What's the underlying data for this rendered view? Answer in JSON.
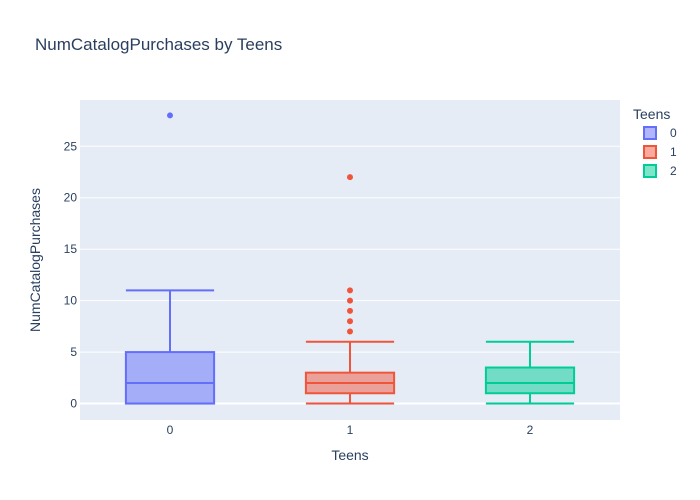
{
  "chart_data": {
    "type": "box",
    "title": "NumCatalogPurchases by Teens",
    "xlabel": "Teens",
    "ylabel": "NumCatalogPurchases",
    "categories": [
      "0",
      "1",
      "2"
    ],
    "ylim": [
      -1.6,
      29.5
    ],
    "yticks": [
      0,
      5,
      10,
      15,
      20,
      25
    ],
    "grid": true,
    "legend": {
      "title": "Teens",
      "placement": "top-right"
    },
    "series": [
      {
        "name": "0",
        "color": "#636efa",
        "min": 0,
        "q1": 0,
        "median": 2,
        "q3": 5,
        "max": 11,
        "outliers": [
          28
        ]
      },
      {
        "name": "1",
        "color": "#ef553b",
        "min": 0,
        "q1": 1,
        "median": 2,
        "q3": 3,
        "max": 6,
        "outliers": [
          7,
          8,
          9,
          10,
          11,
          22
        ]
      },
      {
        "name": "2",
        "color": "#00cc96",
        "min": 0,
        "q1": 1,
        "median": 2,
        "q3": 3.5,
        "max": 6,
        "outliers": []
      }
    ]
  }
}
